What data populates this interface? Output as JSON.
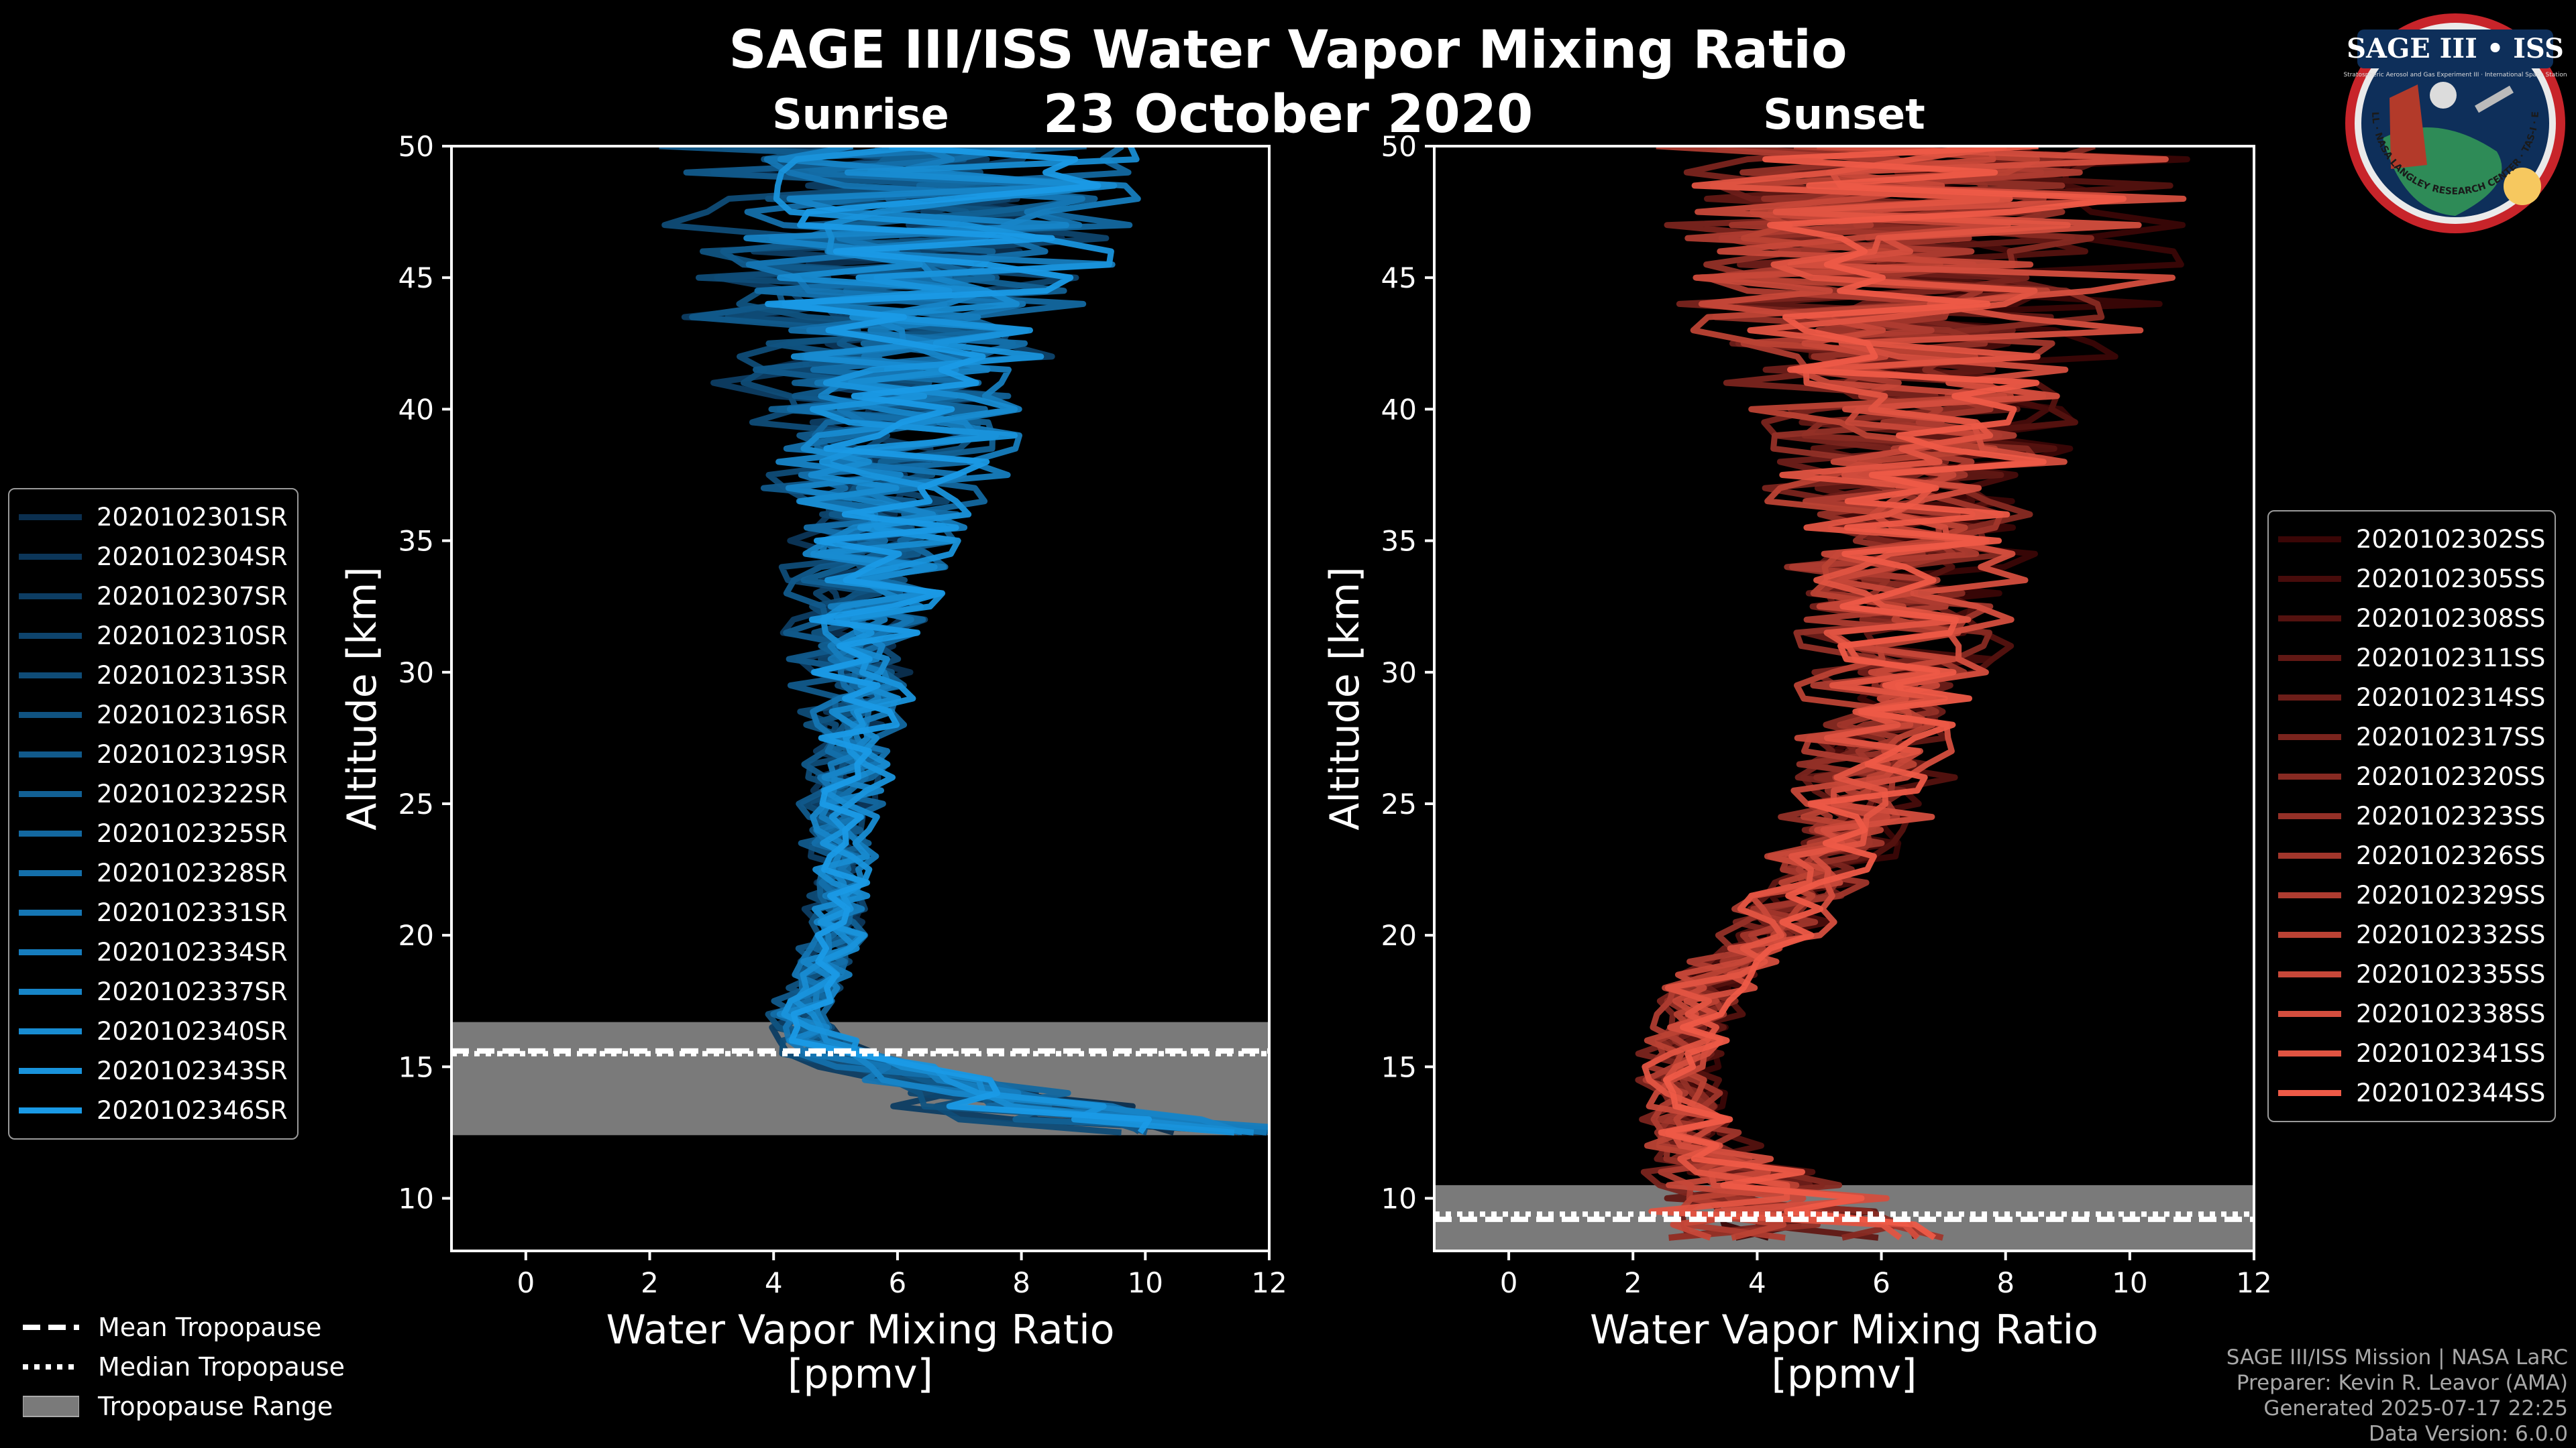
{
  "header": {
    "title": "SAGE III/ISS Water Vapor Mixing Ratio",
    "date": "23 October 2020"
  },
  "logo": {
    "text": "SAGE III • ISS",
    "subtitle": "Stratospheric Aerosol and Gas Experiment III · International Space Station",
    "ring_text": "BALL · NASA LANGLEY RESEARCH CENTER · TAS-I · ESA"
  },
  "credits": {
    "line1": "SAGE III/ISS Mission | NASA LaRC",
    "line2": "Preparer: Kevin R. Leavor (AMA)",
    "line3": "Generated 2025-07-17 22:25",
    "line4": "Data Version: 6.0.0"
  },
  "tropopause_legend": {
    "mean": "Mean Tropopause",
    "median": "Median Tropopause",
    "range": "Tropopause Range"
  },
  "chart_data": [
    {
      "type": "line",
      "title": "Sunrise",
      "xlabel": "Water Vapor Mixing Ratio\n[ppmv]",
      "xlabel_lines": [
        "Water Vapor Mixing Ratio",
        "[ppmv]"
      ],
      "ylabel": "Altitude [km]",
      "xlim": [
        -1.2,
        12
      ],
      "ylim": [
        8,
        50
      ],
      "xticks": [
        0,
        2,
        4,
        6,
        8,
        10,
        12
      ],
      "yticks": [
        10,
        15,
        20,
        25,
        30,
        35,
        40,
        45,
        50
      ],
      "series_names": [
        "2020102301SR",
        "2020102304SR",
        "2020102307SR",
        "2020102310SR",
        "2020102313SR",
        "2020102316SR",
        "2020102319SR",
        "2020102322SR",
        "2020102325SR",
        "2020102328SR",
        "2020102331SR",
        "2020102334SR",
        "2020102337SR",
        "2020102340SR",
        "2020102343SR",
        "2020102346SR"
      ],
      "color_start": "#0b2f4f",
      "color_end": "#1a9ae6",
      "profile_anchors": [
        [
          12.5,
          11
        ],
        [
          13,
          9
        ],
        [
          14,
          7
        ],
        [
          15.5,
          5
        ],
        [
          17,
          4.3
        ],
        [
          18,
          4.6
        ],
        [
          20,
          5.0
        ],
        [
          22,
          5.0
        ],
        [
          25,
          5.1
        ],
        [
          30,
          5.3
        ],
        [
          35,
          5.5
        ],
        [
          40,
          5.6
        ],
        [
          45,
          5.8
        ],
        [
          50,
          5.8
        ]
      ],
      "spread_anchors": [
        [
          12.5,
          3
        ],
        [
          15,
          1.2
        ],
        [
          17,
          0.6
        ],
        [
          20,
          0.6
        ],
        [
          25,
          0.8
        ],
        [
          30,
          1.2
        ],
        [
          35,
          1.8
        ],
        [
          40,
          2.8
        ],
        [
          45,
          4
        ],
        [
          50,
          5
        ]
      ],
      "tropopause": {
        "mean": 15.6,
        "median": 15.5,
        "range": [
          12.4,
          16.7
        ]
      }
    },
    {
      "type": "line",
      "title": "Sunset",
      "xlabel": "Water Vapor Mixing Ratio\n[ppmv]",
      "xlabel_lines": [
        "Water Vapor Mixing Ratio",
        "[ppmv]"
      ],
      "ylabel": "Altitude [km]",
      "xlim": [
        -1.2,
        12
      ],
      "ylim": [
        8,
        50
      ],
      "xticks": [
        0,
        2,
        4,
        6,
        8,
        10,
        12
      ],
      "yticks": [
        10,
        15,
        20,
        25,
        30,
        35,
        40,
        45,
        50
      ],
      "series_names": [
        "2020102302SS",
        "2020102305SS",
        "2020102308SS",
        "2020102311SS",
        "2020102314SS",
        "2020102317SS",
        "2020102320SS",
        "2020102323SS",
        "2020102326SS",
        "2020102329SS",
        "2020102332SS",
        "2020102335SS",
        "2020102338SS",
        "2020102341SS",
        "2020102344SS"
      ],
      "color_start": "#3a0606",
      "color_end": "#ee5a47",
      "profile_anchors": [
        [
          8.5,
          5
        ],
        [
          9.5,
          4.5
        ],
        [
          10.5,
          4
        ],
        [
          12,
          3.2
        ],
        [
          15,
          2.8
        ],
        [
          18,
          3.2
        ],
        [
          20,
          4.2
        ],
        [
          22,
          5.0
        ],
        [
          25,
          5.8
        ],
        [
          30,
          6.4
        ],
        [
          35,
          6.6
        ],
        [
          40,
          6.8
        ],
        [
          45,
          6.9
        ],
        [
          50,
          7.0
        ]
      ],
      "spread_anchors": [
        [
          8.5,
          3
        ],
        [
          12,
          1
        ],
        [
          15,
          0.8
        ],
        [
          20,
          1
        ],
        [
          25,
          1.4
        ],
        [
          30,
          1.8
        ],
        [
          35,
          2.3
        ],
        [
          40,
          3.3
        ],
        [
          45,
          4.5
        ],
        [
          50,
          5
        ]
      ],
      "tropopause": {
        "mean": 9.2,
        "median": 9.4,
        "range": [
          8.0,
          10.5
        ]
      }
    }
  ]
}
